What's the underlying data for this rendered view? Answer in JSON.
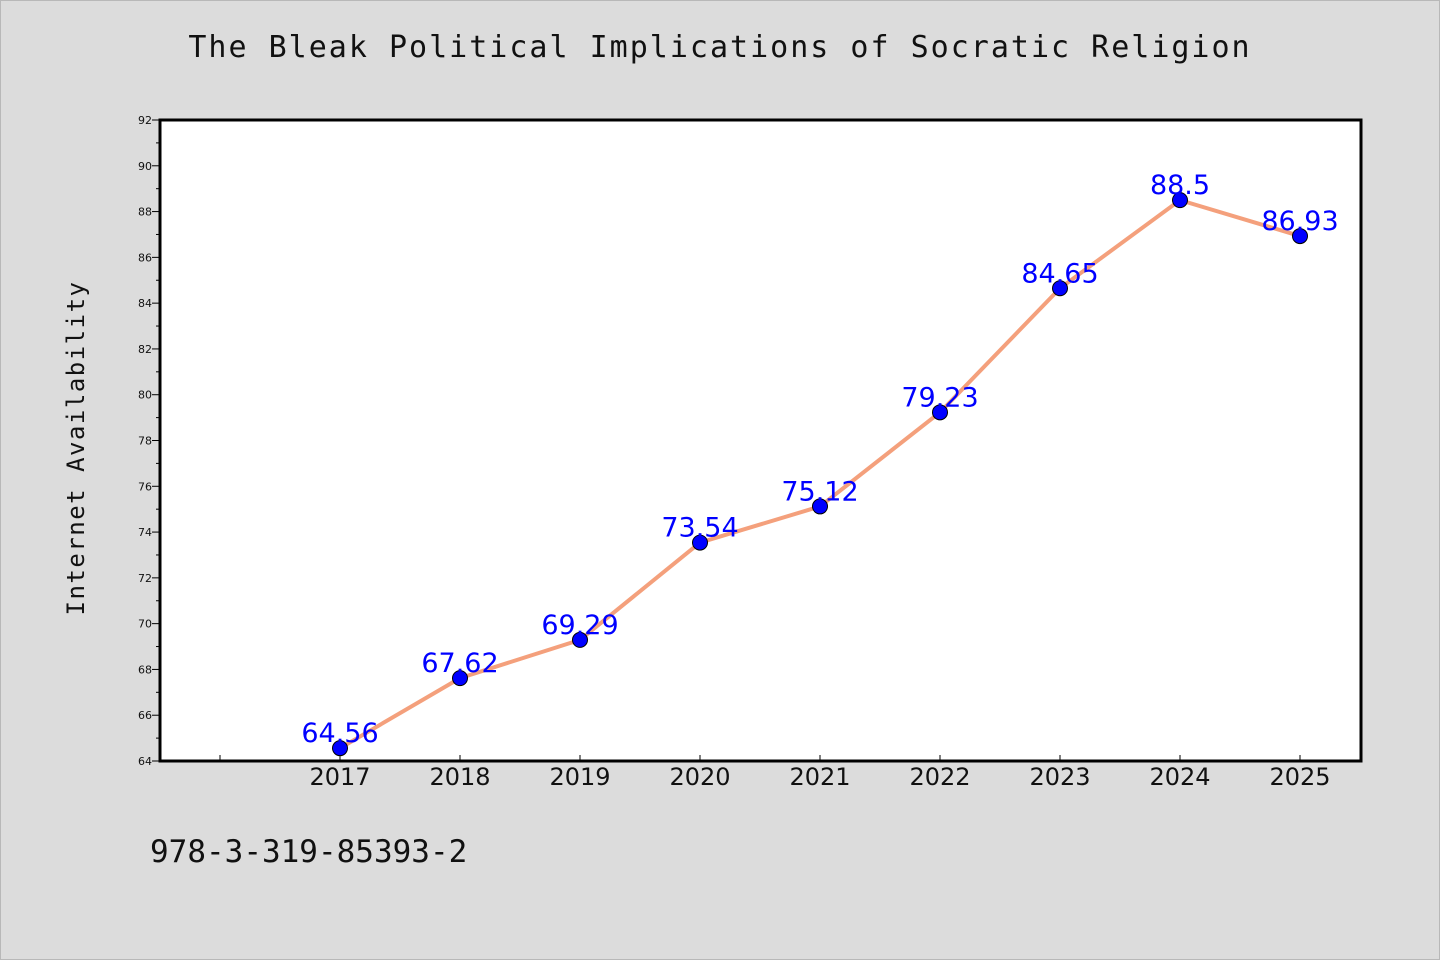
{
  "footnote": "978-3-319-85393-2",
  "colors": {
    "line": "#f4a07c",
    "marker": "#0000ff",
    "data_label": "#0000ff",
    "background": "#dcdcdc",
    "plot_background": "#ffffff"
  },
  "chart_data": {
    "type": "line",
    "title": "The Bleak Political Implications of Socratic Religion",
    "xlabel": "",
    "ylabel": "Internet Availability",
    "categories": [
      "2017",
      "2018",
      "2019",
      "2020",
      "2021",
      "2022",
      "2023",
      "2024",
      "2025"
    ],
    "series": [
      {
        "values": [
          64.56,
          67.62,
          69.29,
          73.54,
          75.12,
          79.23,
          84.65,
          88.5,
          86.93
        ],
        "labels": [
          "64.56",
          "67.62",
          "69.29",
          "73.54",
          "75.12",
          "79.23",
          "84.65",
          "88.5",
          "86.93"
        ]
      }
    ],
    "ylim": [
      64,
      92
    ],
    "yticks": [
      "64",
      "66",
      "68",
      "70",
      "72",
      "74",
      "76",
      "78",
      "80",
      "82",
      "84",
      "86",
      "88",
      "90",
      "92"
    ],
    "grid": false,
    "legend": "none"
  }
}
